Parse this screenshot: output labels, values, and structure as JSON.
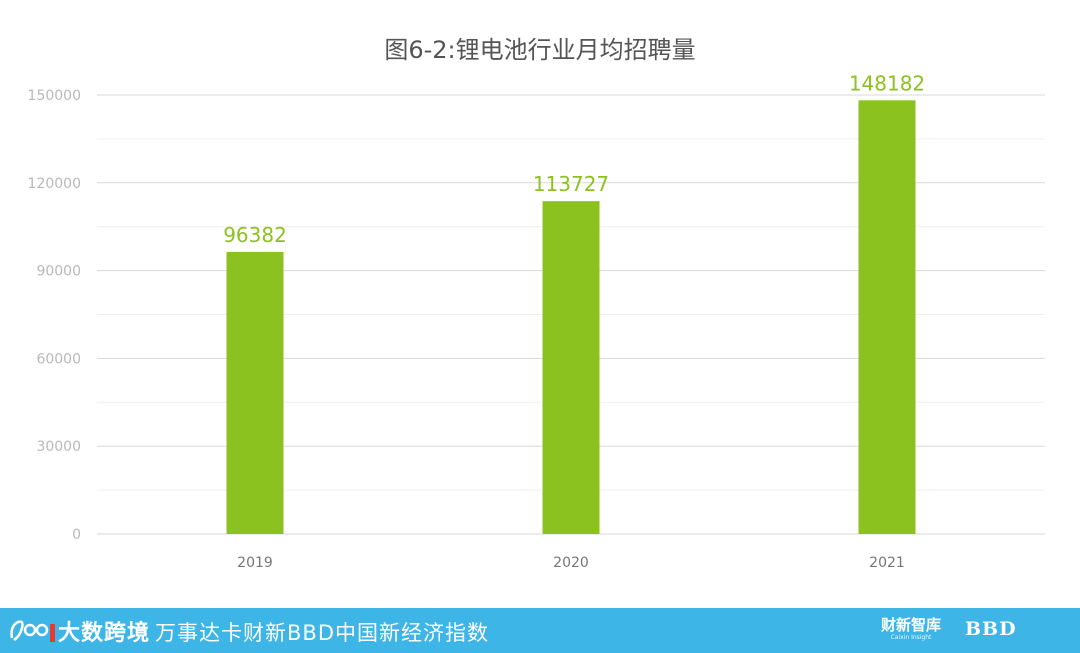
{
  "chart_data": {
    "type": "bar",
    "title": "图6-2:锂电池行业月均招聘量",
    "categories": [
      "2019",
      "2020",
      "2021"
    ],
    "values": [
      96382,
      113727,
      148182
    ],
    "data_labels": [
      "96382",
      "113727",
      "148182"
    ],
    "y_ticks": [
      "0",
      "30000",
      "60000",
      "90000",
      "120000",
      "150000"
    ],
    "ylim": [
      0,
      150000
    ],
    "grid": true,
    "xlabel": "",
    "ylabel": ""
  },
  "colors": {
    "bar": "#8cc21f",
    "data_label": "#8cc21f",
    "major_grid": "#d9d9d9",
    "minor_grid": "#efefef",
    "footer_bg": "#3db5e6"
  },
  "footer": {
    "logo_text": "大数跨境",
    "main_text": "万事达卡财新BBD中国新经济指数",
    "brand1_text": "财新智库",
    "brand1_sub": "Caixin Insight",
    "brand2_text": "BBD",
    "logo_icon": "logo-icon"
  }
}
